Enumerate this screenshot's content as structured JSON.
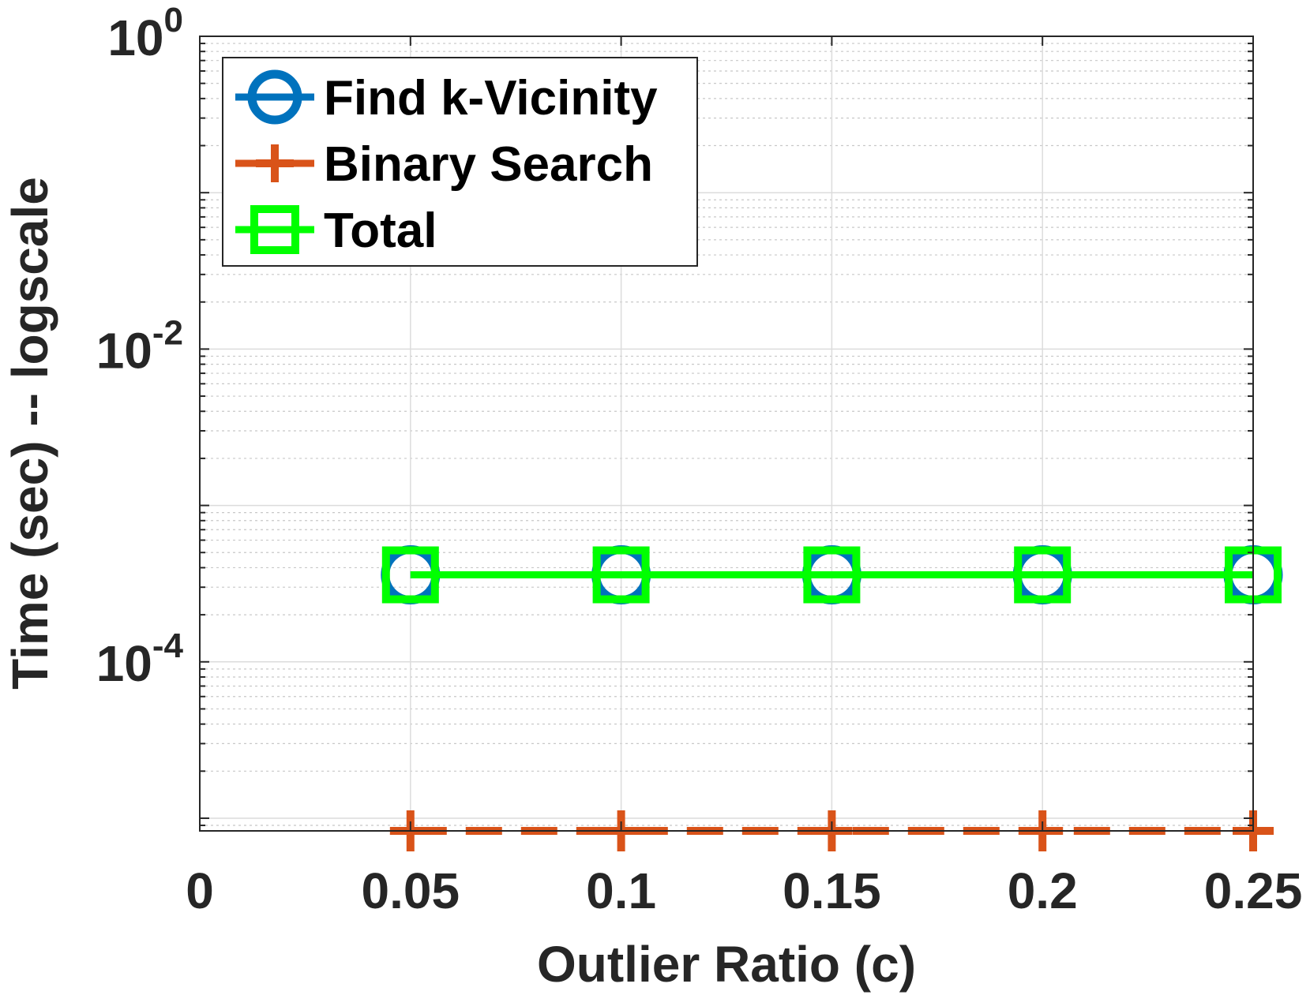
{
  "chart_data": {
    "type": "line",
    "xlabel": "Outlier Ratio (c)",
    "ylabel": "Time (sec) -- logscale",
    "xlim": [
      0,
      0.25
    ],
    "ylim": [
      8.3e-06,
      1
    ],
    "yscale": "log",
    "grid": true,
    "legend_position": "top-left",
    "x_ticks": [
      {
        "value": 0,
        "label": "0"
      },
      {
        "value": 0.05,
        "label": "0.05"
      },
      {
        "value": 0.1,
        "label": "0.1"
      },
      {
        "value": 0.15,
        "label": "0.15"
      },
      {
        "value": 0.2,
        "label": "0.2"
      },
      {
        "value": 0.25,
        "label": "0.25"
      }
    ],
    "y_ticks": [
      {
        "value": 1,
        "base": "10",
        "exp": "0"
      },
      {
        "value": 0.01,
        "base": "10",
        "exp": "-2"
      },
      {
        "value": 0.0001,
        "base": "10",
        "exp": "-4"
      }
    ],
    "x": [
      0.05,
      0.1,
      0.15,
      0.2,
      0.25
    ],
    "series": [
      {
        "name": "Find k-Vicinity",
        "values": [
          0.00036,
          0.00036,
          0.00036,
          0.00036,
          0.00036
        ],
        "color": "#0072BD",
        "marker": "circle",
        "line": "solid"
      },
      {
        "name": "Binary Search",
        "values": [
          8.3e-06,
          8.3e-06,
          8.3e-06,
          8.3e-06,
          8.3e-06
        ],
        "color": "#D95319",
        "marker": "plus",
        "line": "dashed"
      },
      {
        "name": "Total",
        "values": [
          0.00036,
          0.00036,
          0.00036,
          0.00036,
          0.00036
        ],
        "color": "#00FF00",
        "marker": "square",
        "line": "solid"
      }
    ]
  }
}
